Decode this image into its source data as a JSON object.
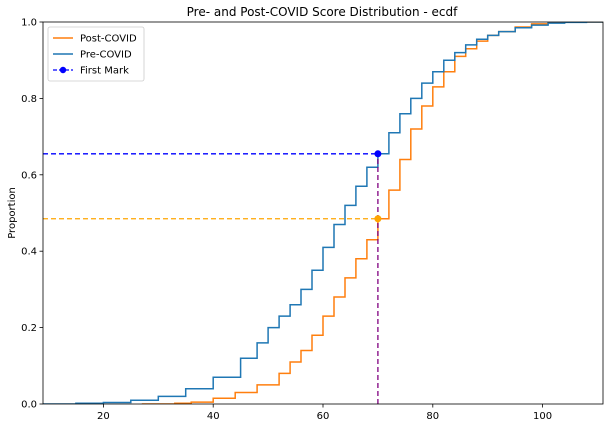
{
  "chart_data": {
    "type": "line",
    "title": "Pre- and Post-COVID Score Distribution - ecdf",
    "xlabel": "",
    "ylabel": "Proportion",
    "xlim": [
      9,
      111
    ],
    "ylim": [
      0,
      1
    ],
    "xticks": [
      20,
      40,
      60,
      80,
      100
    ],
    "yticks": [
      0.0,
      0.2,
      0.4,
      0.6,
      0.8,
      1.0
    ],
    "ytick_labels": [
      "0.0",
      "0.2",
      "0.4",
      "0.6",
      "0.8",
      "1.0"
    ],
    "grid": false,
    "legend_position": "top-left",
    "series": [
      {
        "name": "Post-COVID",
        "color": "#ff7f0e",
        "x": [
          27,
          30,
          33,
          36,
          40,
          44,
          48,
          52,
          54,
          56,
          58,
          60,
          62,
          64,
          66,
          68,
          70,
          72,
          74,
          76,
          78,
          80,
          82,
          84,
          86,
          88,
          90,
          92,
          95,
          98,
          101,
          104,
          108,
          111
        ],
        "y": [
          0.0,
          0.0,
          0.002,
          0.005,
          0.015,
          0.03,
          0.05,
          0.08,
          0.11,
          0.14,
          0.18,
          0.23,
          0.28,
          0.33,
          0.38,
          0.43,
          0.485,
          0.56,
          0.64,
          0.72,
          0.78,
          0.83,
          0.87,
          0.91,
          0.93,
          0.95,
          0.965,
          0.975,
          0.987,
          0.995,
          0.998,
          1.0,
          1.0,
          1.0
        ]
      },
      {
        "name": "Pre-COVID",
        "color": "#1f77b4",
        "x": [
          9,
          15,
          20,
          25,
          30,
          35,
          40,
          45,
          48,
          50,
          52,
          54,
          56,
          58,
          60,
          62,
          64,
          66,
          68,
          70,
          72,
          74,
          76,
          78,
          80,
          82,
          84,
          86,
          88,
          90,
          92,
          95,
          98,
          101,
          104,
          108,
          111
        ],
        "y": [
          0.0,
          0.002,
          0.004,
          0.01,
          0.02,
          0.04,
          0.07,
          0.12,
          0.16,
          0.2,
          0.23,
          0.26,
          0.3,
          0.35,
          0.41,
          0.47,
          0.52,
          0.57,
          0.62,
          0.655,
          0.71,
          0.76,
          0.8,
          0.84,
          0.87,
          0.9,
          0.92,
          0.94,
          0.955,
          0.965,
          0.975,
          0.985,
          0.992,
          0.997,
          0.999,
          1.0,
          1.0
        ]
      }
    ],
    "markers": [
      {
        "name": "First Mark",
        "color": "#0000ff",
        "x": 70,
        "y": 0.655,
        "legend": true
      },
      {
        "name": "",
        "color": "#ffa500",
        "x": 70,
        "y": 0.485,
        "legend": false
      }
    ],
    "guide_vertical": {
      "x": 70,
      "color": "#800080"
    }
  }
}
